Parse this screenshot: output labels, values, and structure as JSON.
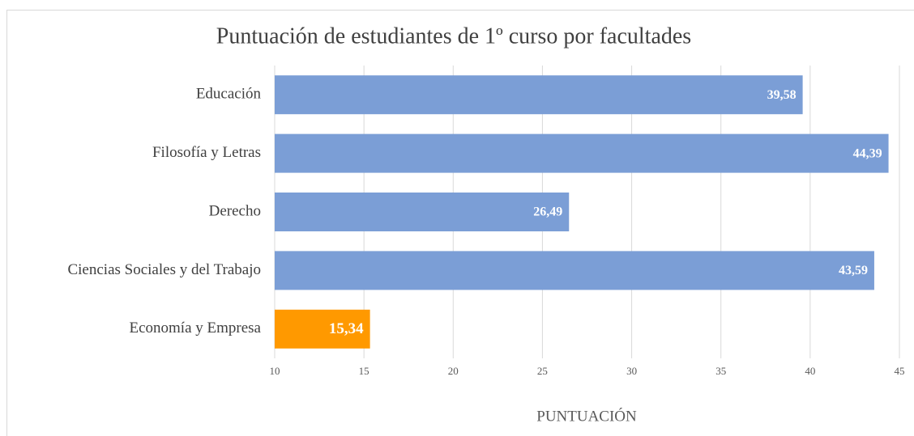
{
  "chart_data": {
    "type": "bar",
    "orientation": "horizontal",
    "title": "Puntuación de estudiantes de 1º curso por facultades",
    "xlabel": "PUNTUACIÓN",
    "categories": [
      "Educación",
      "Filosofía y Letras",
      "Derecho",
      "Ciencias Sociales y del Trabajo",
      "Economía y Empresa"
    ],
    "values": [
      39.58,
      44.39,
      26.49,
      43.59,
      15.34
    ],
    "value_labels": [
      "39,58",
      "44,39",
      "26,49",
      "43,59",
      "15,34"
    ],
    "colors": [
      "#7b9ed6",
      "#7b9ed6",
      "#7b9ed6",
      "#7b9ed6",
      "#ff9900"
    ],
    "xlim": [
      10,
      45
    ],
    "xticks": [
      10,
      15,
      20,
      25,
      30,
      35,
      40,
      45
    ],
    "grid": true
  }
}
